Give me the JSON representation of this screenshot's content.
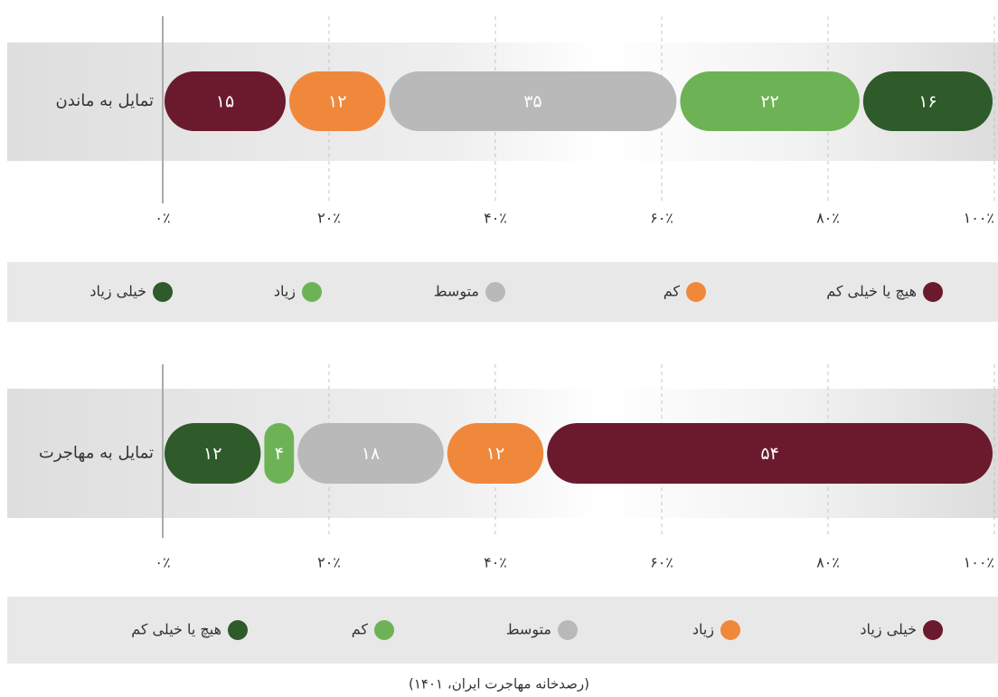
{
  "chart_data": [
    {
      "type": "stacked_bar_horizontal",
      "categories": [
        "تمایل به ماندن"
      ],
      "series": [
        {
          "name": "هیچ یا خیلی کم",
          "color": "#6b1a2e",
          "values": [
            15
          ],
          "value_labels": [
            "۱۵"
          ]
        },
        {
          "name": "کم",
          "color": "#f0883c",
          "values": [
            12
          ],
          "value_labels": [
            "۱۲"
          ]
        },
        {
          "name": "متوسط",
          "color": "#b9b9b9",
          "values": [
            35
          ],
          "value_labels": [
            "۳۵"
          ]
        },
        {
          "name": "زیاد",
          "color": "#6db356",
          "values": [
            22
          ],
          "value_labels": [
            "۲۲"
          ]
        },
        {
          "name": "خیلی زیاد",
          "color": "#2f5a2a",
          "values": [
            16
          ],
          "value_labels": [
            "۱۶"
          ]
        }
      ],
      "xlim": [
        0,
        100
      ],
      "xticks": [
        {
          "value": 0,
          "label": "۰٪"
        },
        {
          "value": 20,
          "label": "۲۰٪"
        },
        {
          "value": 40,
          "label": "۴۰٪"
        },
        {
          "value": 60,
          "label": "۶۰٪"
        },
        {
          "value": 80,
          "label": "۸۰٪"
        },
        {
          "value": 100,
          "label": "۱۰۰٪"
        }
      ],
      "grid": true,
      "legend": "bottom"
    },
    {
      "type": "stacked_bar_horizontal",
      "categories": [
        "تمایل به مهاجرت"
      ],
      "series": [
        {
          "name": "هیچ یا خیلی کم",
          "color": "#2f5a2a",
          "values": [
            12
          ],
          "value_labels": [
            "۱۲"
          ]
        },
        {
          "name": "کم",
          "color": "#6db356",
          "values": [
            4
          ],
          "value_labels": [
            "۴"
          ]
        },
        {
          "name": "متوسط",
          "color": "#b9b9b9",
          "values": [
            18
          ],
          "value_labels": [
            "۱۸"
          ]
        },
        {
          "name": "زیاد",
          "color": "#f0883c",
          "values": [
            12
          ],
          "value_labels": [
            "۱۲"
          ]
        },
        {
          "name": "خیلی زیاد",
          "color": "#6b1a2e",
          "values": [
            54
          ],
          "value_labels": [
            "۵۴"
          ]
        }
      ],
      "xlim": [
        0,
        100
      ],
      "xticks": [
        {
          "value": 0,
          "label": "۰٪"
        },
        {
          "value": 20,
          "label": "۲۰٪"
        },
        {
          "value": 40,
          "label": "۴۰٪"
        },
        {
          "value": 60,
          "label": "۶۰٪"
        },
        {
          "value": 80,
          "label": "۸۰٪"
        },
        {
          "value": 100,
          "label": "۱۰۰٪"
        }
      ],
      "grid": true,
      "legend": "bottom"
    }
  ],
  "source": "(رصدخانه مهاجرت ایران، ۱۴۰۱)"
}
